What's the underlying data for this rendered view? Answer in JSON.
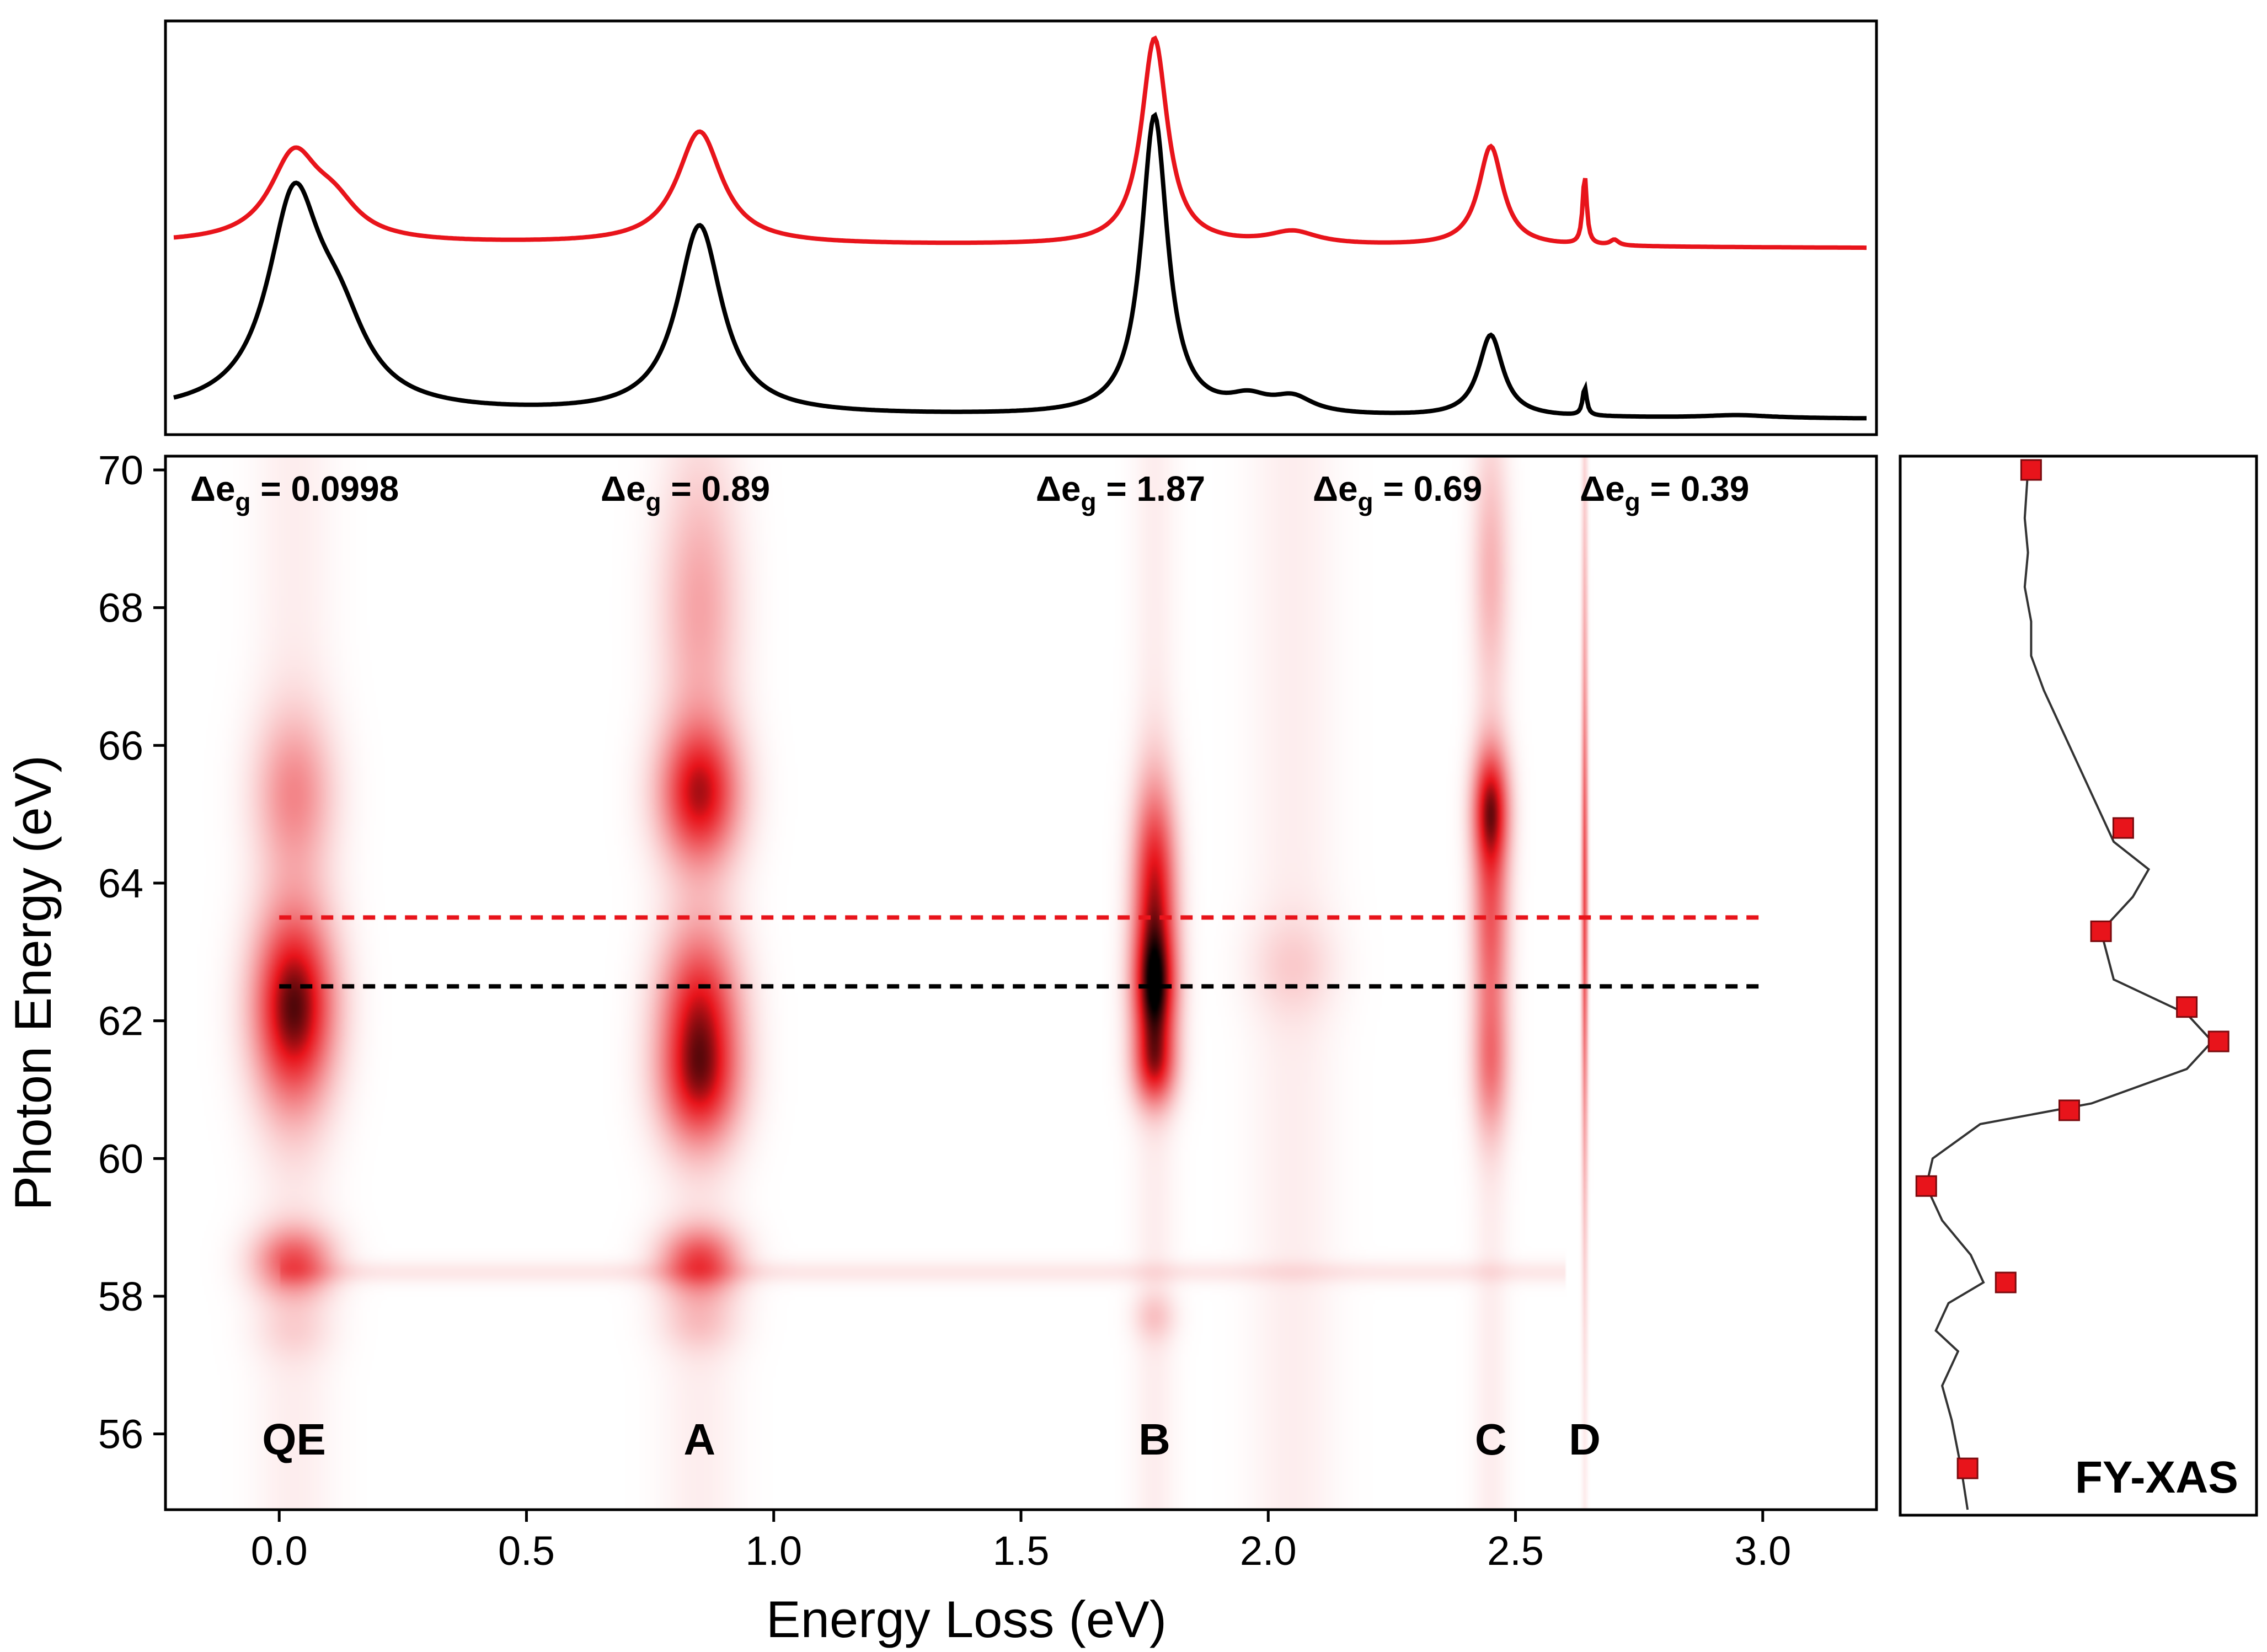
{
  "chart_data": [
    {
      "type": "line",
      "panel": "top spectra",
      "x_units": "Energy Loss (eV)",
      "series": [
        {
          "color": "#e8141b",
          "peaks": [
            {
              "x": 0.03,
              "height": 0.6,
              "width": 0.06
            },
            {
              "x": 0.11,
              "height": 0.22,
              "width": 0.06
            },
            {
              "x": 0.85,
              "height": 0.8,
              "width": 0.055
            },
            {
              "x": 1.77,
              "height": 1.47,
              "width": 0.032
            },
            {
              "x": 2.05,
              "height": 0.09,
              "width": 0.06
            },
            {
              "x": 2.45,
              "height": 0.71,
              "width": 0.03
            },
            {
              "x": 2.64,
              "height": 0.49,
              "width": 0.005
            },
            {
              "x": 2.7,
              "height": 0.04,
              "width": 0.01
            }
          ],
          "baseline": 0.03
        },
        {
          "color": "#000000",
          "peaks": [
            {
              "x": 0.03,
              "height": 1.45,
              "width": 0.065
            },
            {
              "x": 0.12,
              "height": 0.5,
              "width": 0.07
            },
            {
              "x": 0.85,
              "height": 1.34,
              "width": 0.055
            },
            {
              "x": 1.77,
              "height": 2.13,
              "width": 0.032
            },
            {
              "x": 1.96,
              "height": 0.1,
              "width": 0.05
            },
            {
              "x": 2.05,
              "height": 0.11,
              "width": 0.05
            },
            {
              "x": 2.45,
              "height": 0.58,
              "width": 0.03
            },
            {
              "x": 2.64,
              "height": 0.2,
              "width": 0.005
            },
            {
              "x": 2.95,
              "height": 0.02,
              "width": 0.08
            }
          ],
          "baseline": 0.03
        }
      ]
    },
    {
      "type": "heatmap",
      "panel": "RIXS map",
      "xlabel": "Energy Loss (eV)",
      "ylabel": "Photon Energy (eV)",
      "xlim": [
        -0.23,
        3.23
      ],
      "ylim": [
        54.9,
        70.2
      ],
      "xticks": [
        "0.0",
        "0.5",
        "1.0",
        "1.5",
        "2.0",
        "2.5",
        "3.0"
      ],
      "xtick_values": [
        0,
        0.5,
        1.0,
        1.5,
        2.0,
        2.5,
        3.0
      ],
      "yticks": [
        "56",
        "58",
        "60",
        "62",
        "64",
        "66",
        "68",
        "70"
      ],
      "ytick_values": [
        56,
        58,
        60,
        62,
        64,
        66,
        68,
        70
      ],
      "colormap": [
        "#ffffff",
        "#e8141b",
        "#000000"
      ],
      "columns": [
        {
          "x": 0.03,
          "width": 0.055,
          "blobs": [
            {
              "y": 62.2,
              "h": 0.95,
              "v": 1.0
            },
            {
              "y": 65.3,
              "h": 0.8,
              "v": 0.35
            },
            {
              "y": 58.5,
              "h": 0.35,
              "v": 0.55
            },
            {
              "y": 57.5,
              "h": 0.3,
              "v": 0.1
            }
          ]
        },
        {
          "x": 0.85,
          "width": 0.055,
          "blobs": [
            {
              "y": 62.0,
              "h": 0.9,
              "v": 0.78
            },
            {
              "y": 61.0,
              "h": 0.6,
              "v": 0.45
            },
            {
              "y": 65.3,
              "h": 0.7,
              "v": 0.82
            },
            {
              "y": 68.0,
              "h": 1.3,
              "v": 0.25
            },
            {
              "y": 58.5,
              "h": 0.35,
              "v": 0.6
            },
            {
              "y": 57.6,
              "h": 0.3,
              "v": 0.15
            }
          ]
        },
        {
          "x": 1.77,
          "width": 0.03,
          "blobs": [
            {
              "y": 62.4,
              "h": 0.7,
              "v": 1.0
            },
            {
              "y": 64.0,
              "h": 1.0,
              "v": 0.75
            },
            {
              "y": 61.3,
              "h": 0.4,
              "v": 0.55
            },
            {
              "y": 57.7,
              "h": 0.25,
              "v": 0.15
            }
          ]
        },
        {
          "x": 2.45,
          "width": 0.025,
          "blobs": [
            {
              "y": 65.1,
              "h": 0.6,
              "v": 0.75
            },
            {
              "y": 63.5,
              "h": 1.2,
              "v": 0.5
            },
            {
              "y": 61.3,
              "h": 0.7,
              "v": 0.35
            },
            {
              "y": 68.5,
              "h": 1.2,
              "v": 0.2
            }
          ]
        },
        {
          "x": 2.64,
          "width": 0.004,
          "blobs": [
            {
              "y": 64.0,
              "h": 2.0,
              "v": 0.45
            },
            {
              "y": 61.5,
              "h": 2.5,
              "v": 0.2
            },
            {
              "y": 68.0,
              "h": 2.0,
              "v": 0.15
            }
          ]
        },
        {
          "x": 2.05,
          "width": 0.06,
          "blobs": [
            {
              "y": 62.8,
              "h": 0.5,
              "v": 0.12
            }
          ]
        }
      ],
      "dashed_lines": [
        {
          "y": 63.5,
          "x_from": 0.0,
          "x_to": 3.0,
          "color": "#e8141b"
        },
        {
          "y": 62.5,
          "x_from": 0.0,
          "x_to": 3.0,
          "color": "#000000"
        }
      ],
      "peak_labels": [
        {
          "text": "QE",
          "x": 0.03
        },
        {
          "text": "A",
          "x": 0.85
        },
        {
          "text": "B",
          "x": 1.77
        },
        {
          "text": "C",
          "x": 2.45
        },
        {
          "text": "D",
          "x": 2.64
        }
      ],
      "gap_labels": [
        {
          "prefix": "Δe",
          "sub": "g",
          "value": " = 0.0998",
          "x": -0.18
        },
        {
          "prefix": "Δe",
          "sub": "g",
          "value": " = 0.89",
          "x": 0.65
        },
        {
          "prefix": "Δe",
          "sub": "g",
          "value": " = 1.87",
          "x": 1.53
        },
        {
          "prefix": "Δe",
          "sub": "g",
          "value": " = 0.69",
          "x": 2.09
        },
        {
          "prefix": "Δe",
          "sub": "g",
          "value": " = 0.39",
          "x": 2.63
        }
      ]
    },
    {
      "type": "line",
      "panel": "FY-XAS",
      "label": "FY-XAS",
      "y_units": "Photon Energy (eV)",
      "curve": [
        [
          0.16,
          54.9
        ],
        [
          0.14,
          55.5
        ],
        [
          0.11,
          56.2
        ],
        [
          0.08,
          56.7
        ],
        [
          0.13,
          57.2
        ],
        [
          0.06,
          57.5
        ],
        [
          0.1,
          57.9
        ],
        [
          0.21,
          58.2
        ],
        [
          0.17,
          58.6
        ],
        [
          0.08,
          59.1
        ],
        [
          0.03,
          59.6
        ],
        [
          0.05,
          60.0
        ],
        [
          0.2,
          60.5
        ],
        [
          0.55,
          60.8
        ],
        [
          0.85,
          61.3
        ],
        [
          0.93,
          61.7
        ],
        [
          0.85,
          62.1
        ],
        [
          0.62,
          62.6
        ],
        [
          0.58,
          63.3
        ],
        [
          0.68,
          63.8
        ],
        [
          0.73,
          64.2
        ],
        [
          0.62,
          64.6
        ],
        [
          0.58,
          65.0
        ],
        [
          0.5,
          65.8
        ],
        [
          0.45,
          66.3
        ],
        [
          0.4,
          66.8
        ],
        [
          0.36,
          67.3
        ],
        [
          0.36,
          67.8
        ],
        [
          0.34,
          68.3
        ],
        [
          0.35,
          68.8
        ],
        [
          0.34,
          69.3
        ],
        [
          0.35,
          70.0
        ]
      ],
      "points": [
        [
          0.16,
          55.5
        ],
        [
          0.28,
          58.2
        ],
        [
          0.03,
          59.6
        ],
        [
          0.48,
          60.7
        ],
        [
          0.95,
          61.7
        ],
        [
          0.85,
          62.2
        ],
        [
          0.58,
          63.3
        ],
        [
          0.65,
          64.8
        ],
        [
          0.36,
          70.0
        ]
      ]
    }
  ]
}
